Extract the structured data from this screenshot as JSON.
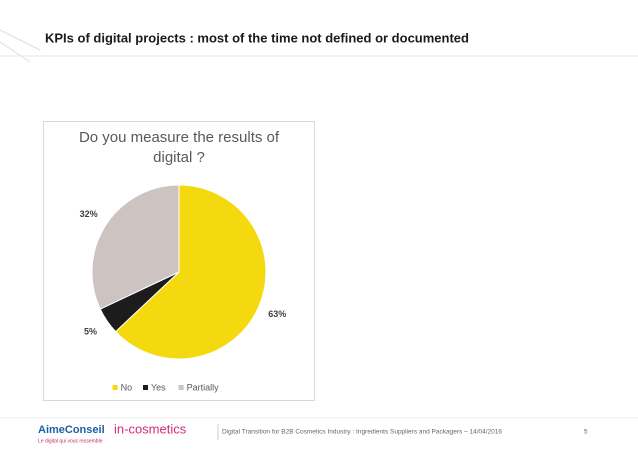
{
  "slide": {
    "title": "KPIs of digital projects : most of the time not defined or documented",
    "footer": "Digital Transition for B2B Cosmetics Industry : Ingredients Suppliers and Packagers – 14/04/2016",
    "page_number": "5",
    "logo_left": "AimeConseil",
    "logo_left_tagline": "Le digital qui vous ressemble",
    "logo_right": "in-cosmetics"
  },
  "chart_data": {
    "type": "pie",
    "title": "Do you measure the results of digital ?",
    "categories": [
      "No",
      "Yes",
      "Partially"
    ],
    "values": [
      63,
      5,
      32
    ],
    "value_labels": [
      "63%",
      "5%",
      "32%"
    ],
    "colors": [
      "#f5d90f",
      "#1c1c1c",
      "#cdc4c2"
    ],
    "legend": "bottom"
  }
}
